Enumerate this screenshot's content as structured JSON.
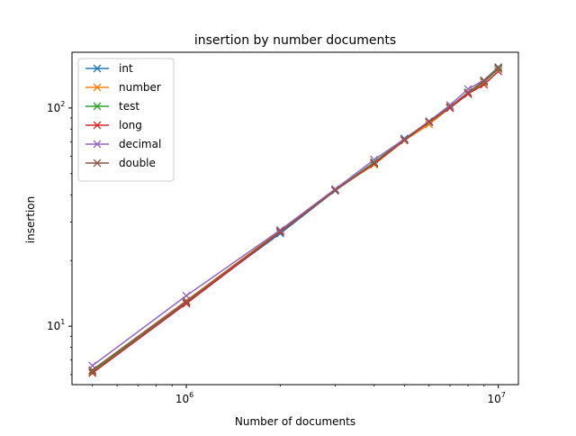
{
  "chart_data": {
    "type": "line",
    "title": "insertion by number documents",
    "xlabel": "Number of documents",
    "ylabel": "insertion",
    "xscale": "log",
    "yscale": "log",
    "xlim": [
      430000,
      11600000
    ],
    "ylim": [
      5.4,
      180
    ],
    "x_tick_labels": [
      {
        "value": 1000000,
        "base": "10",
        "exp": "6"
      },
      {
        "value": 10000000,
        "base": "10",
        "exp": "7"
      }
    ],
    "y_tick_labels": [
      {
        "value": 10,
        "base": "10",
        "exp": "1"
      },
      {
        "value": 100,
        "base": "10",
        "exp": "2"
      }
    ],
    "x": [
      500000,
      1000000,
      2000000,
      3000000,
      4000000,
      5000000,
      6000000,
      7000000,
      8000000,
      9000000,
      10000000
    ],
    "series": [
      {
        "name": "int",
        "color": "#1f77b4",
        "marker": "x",
        "values": [
          6.2,
          12.9,
          26.6,
          41.8,
          56.0,
          72.5,
          86.0,
          100.0,
          116.0,
          131.0,
          151.0
        ]
      },
      {
        "name": "number",
        "color": "#ff7f0e",
        "marker": "x",
        "values": [
          6.3,
          13.1,
          27.4,
          42.2,
          55.0,
          71.0,
          84.0,
          100.5,
          117.0,
          131.0,
          152.0
        ]
      },
      {
        "name": "test",
        "color": "#2ca02c",
        "marker": "x",
        "values": [
          6.2,
          13.0,
          27.2,
          42.1,
          56.5,
          72.0,
          86.0,
          101.0,
          117.0,
          132.0,
          151.0
        ]
      },
      {
        "name": "long",
        "color": "#d62728",
        "marker": "x",
        "values": [
          6.1,
          12.7,
          27.0,
          41.9,
          55.5,
          71.0,
          86.0,
          100.0,
          116.0,
          128.0,
          147.0
        ]
      },
      {
        "name": "decimal",
        "color": "#9467bd",
        "marker": "x",
        "values": [
          6.6,
          13.8,
          27.6,
          42.5,
          58.0,
          72.0,
          87.0,
          103.0,
          122.0,
          134.0,
          154.0
        ]
      },
      {
        "name": "double",
        "color": "#8c564b",
        "marker": "x",
        "values": [
          6.3,
          13.0,
          27.2,
          42.0,
          56.0,
          71.5,
          86.5,
          101.0,
          118.0,
          133.0,
          153.0
        ]
      }
    ],
    "grid": false,
    "legend": "top-left"
  }
}
